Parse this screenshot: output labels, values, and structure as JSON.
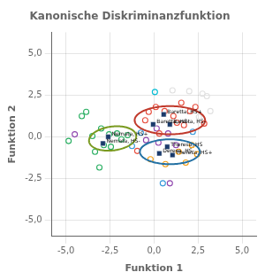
{
  "chart_data": {
    "type": "scatter",
    "title": "Kanonische Diskriminanzfunktion",
    "xlabel": "Funktion 1",
    "ylabel": "Funktion 2",
    "xlim": [
      -5.8,
      5.8
    ],
    "ylim": [
      -6.0,
      6.3
    ],
    "xticks": [
      {
        "value": -5.0,
        "label": "-5,0"
      },
      {
        "value": -2.5,
        "label": "-2,5"
      },
      {
        "value": 0.0,
        "label": "0,0"
      },
      {
        "value": 2.5,
        "label": "2,5"
      },
      {
        "value": 5.0,
        "label": "5,0"
      }
    ],
    "yticks": [
      {
        "value": -5.0,
        "label": "-5,0"
      },
      {
        "value": -2.5,
        "label": "-2,5"
      },
      {
        "value": 0.0,
        "label": "0,0"
      },
      {
        "value": 2.5,
        "label": "2,5"
      },
      {
        "value": 5.0,
        "label": "5,0"
      }
    ],
    "grid": true,
    "series": [
      {
        "marker": "square",
        "color": "#1a3a6b",
        "x": [
          -2.6,
          -2.9,
          0.55,
          -0.05,
          0.9,
          0.75,
          1.05,
          0.3
        ],
        "values": [
          0.0,
          -0.4,
          1.35,
          0.75,
          0.75,
          -0.6,
          -1.1,
          -1.0
        ],
        "point_labels": [
          "Nemata, HS+",
          "Nemata, HS-",
          "Baretta, HS+",
          "Baretta, HS-",
          "Baretta, HS-",
          "Theresa, HS",
          "Theresa, HS+",
          "Deresa, HS-"
        ]
      },
      {
        "marker": "open_circle",
        "x": [
          -4.85,
          -4.5,
          -4.1,
          -3.85,
          -3.5,
          -3.35,
          -3.1,
          -3.0,
          -2.85,
          -2.55,
          -2.45,
          -2.1,
          -1.85,
          -1.5,
          -1.25,
          -0.95,
          -0.75,
          -0.5,
          -0.45,
          -0.3,
          -0.2,
          0.05,
          0.1,
          0.15,
          0.25,
          0.3,
          0.5,
          0.6,
          0.65,
          0.8,
          0.9,
          1.05,
          1.1,
          1.25,
          1.3,
          1.4,
          1.55,
          1.7,
          1.8,
          2.0,
          2.05,
          2.15,
          2.2,
          2.35,
          2.45,
          2.55,
          2.75,
          2.85,
          3.0,
          3.2
        ],
        "values": [
          -0.25,
          0.15,
          1.25,
          1.5,
          0.05,
          -0.9,
          -1.85,
          0.5,
          -0.5,
          0.15,
          -0.6,
          0.2,
          -0.15,
          0.1,
          -0.55,
          -0.85,
          0.25,
          1.0,
          -0.2,
          1.5,
          -1.35,
          2.7,
          1.8,
          0.5,
          -0.35,
          0.2,
          -2.8,
          1.55,
          -1.65,
          0.2,
          -2.8,
          2.8,
          1.25,
          -0.5,
          0.85,
          -0.9,
          2.05,
          0.7,
          -1.55,
          2.75,
          1.55,
          -0.5,
          0.3,
          1.8,
          -1.05,
          1.2,
          2.6,
          0.8,
          2.45,
          1.55
        ],
        "colors": [
          "#27ae60",
          "#8e44ad",
          "#27ae60",
          "#27ae60",
          "#27ae60",
          "#27ae60",
          "#27ae60",
          "#27ae60",
          "#27ae60",
          "#27ae60",
          "#27ae60",
          "#27ae60",
          "#27ae60",
          "#27ae60",
          "#3498db",
          "#e74c3c",
          "#3498db",
          "#e74c3c",
          "#8e44ad",
          "#e74c3c",
          "#f39c12",
          "#00bcd4",
          "#e74c3c",
          "#8e44ad",
          "#8e44ad",
          "#e74c3c",
          "#3498db",
          "#e74c3c",
          "#f39c12",
          "#8e44ad",
          "#8e44ad",
          "#e0e0e0",
          "#e74c3c",
          "#8e44ad",
          "#e74c3c",
          "#f39c12",
          "#e74c3c",
          "#e74c3c",
          "#f39c12",
          "#e0e0e0",
          "#e74c3c",
          "#f39c12",
          "#3498db",
          "#e74c3c",
          "#f39c12",
          "#e0e0e0",
          "#e0e0e0",
          "#e74c3c",
          "#e0e0e0",
          "#e0e0e0"
        ]
      }
    ],
    "ellipses": [
      {
        "cx": -2.35,
        "cy": -0.1,
        "rx": 1.35,
        "ry": 0.72,
        "angle": 8,
        "color": "#7a9a20"
      },
      {
        "cx": 0.9,
        "cy": 1.0,
        "rx": 2.0,
        "ry": 0.85,
        "angle": 0,
        "color": "#c0392b"
      },
      {
        "cx": 0.9,
        "cy": -0.9,
        "rx": 1.7,
        "ry": 0.75,
        "angle": 0,
        "color": "#2471a3"
      }
    ]
  }
}
